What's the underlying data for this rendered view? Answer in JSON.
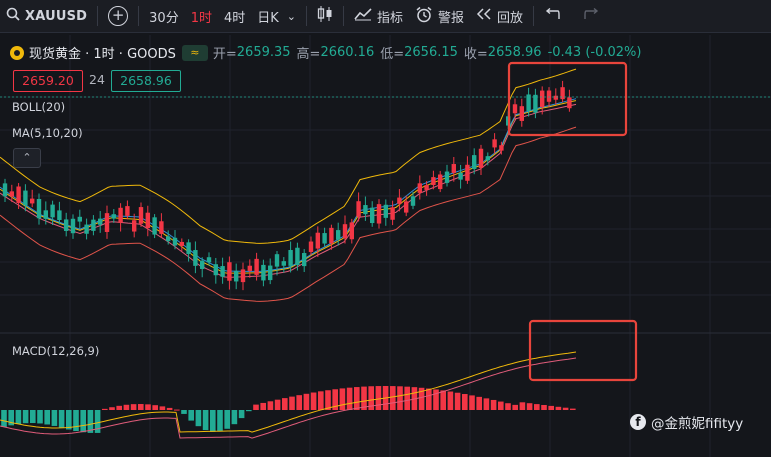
{
  "toolbar": {
    "symbol": "XAUUSD",
    "add_label": "+",
    "intervals": [
      "30分",
      "1时",
      "4时",
      "日K"
    ],
    "active_interval": "1时",
    "indicators_label": "指标",
    "alert_label": "警报",
    "replay_label": "回放"
  },
  "legend": {
    "name": "现货黄金 · 1时 · GOODS",
    "open_label": "开=",
    "open": "2659.35",
    "high_label": "高=",
    "high": "2660.16",
    "low_label": "低=",
    "low": "2656.15",
    "close_label": "收=",
    "close": "2658.96",
    "change": "-0.43 (-0.02%)",
    "badge": "≈"
  },
  "price_boxes": {
    "bid": "2659.20",
    "spread": "24",
    "ask": "2658.96"
  },
  "indicators": {
    "boll": "BOLL(20)",
    "ma": "MA(5,10,20)",
    "macd": "MACD(12,26,9)"
  },
  "watermark": "@金煎妮fifityy",
  "colors": {
    "up": "#f23645",
    "down": "#22ab94",
    "boll_band": "#f0b90b",
    "ma_pink": "#e05c7a",
    "ma_blue": "#2f8fd8",
    "highlight_box": "#e8453c"
  }
}
